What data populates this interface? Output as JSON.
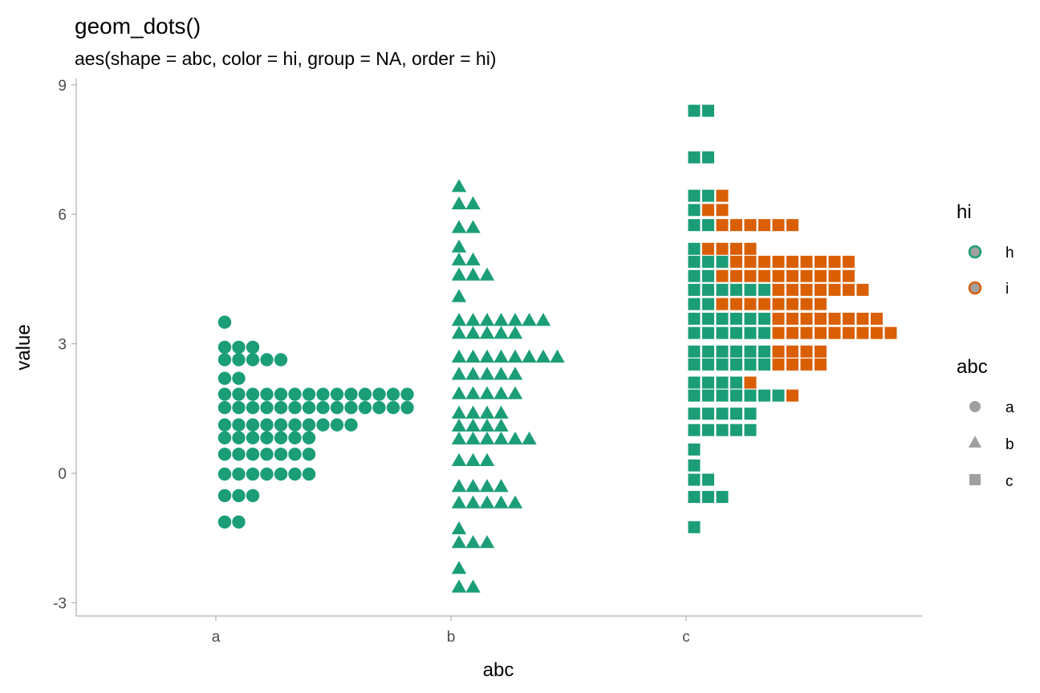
{
  "colors": {
    "h": "#1b9e77",
    "i": "#d95f02",
    "legend_fill": "#a0a0a0",
    "axis": "#b3b3b3"
  },
  "chart_data": {
    "type": "dotplot",
    "title": "geom_dots()",
    "subtitle": "aes(shape = abc, color = hi, group = NA, order = hi)",
    "xlabel": "abc",
    "ylabel": "value",
    "categories": [
      "a",
      "b",
      "c"
    ],
    "yticks": [
      -3,
      0,
      3,
      6,
      9
    ],
    "ylim": [
      -3.3,
      9.0
    ],
    "grid": false,
    "legend_position": "right",
    "legends": [
      {
        "title": "hi",
        "key": "color",
        "entries": [
          {
            "label": "h",
            "color": "#1b9e77"
          },
          {
            "label": "i",
            "color": "#d95f02"
          }
        ]
      },
      {
        "title": "abc",
        "key": "shape",
        "entries": [
          {
            "label": "a",
            "shape": "circle"
          },
          {
            "label": "b",
            "shape": "triangle"
          },
          {
            "label": "c",
            "shape": "square"
          }
        ]
      }
    ],
    "stacks": [
      {
        "category": "a",
        "shape": "circle",
        "bins": [
          {
            "y": 3.5,
            "h": 1,
            "i": 0
          },
          {
            "y": 2.92,
            "h": 3,
            "i": 0
          },
          {
            "y": 2.63,
            "h": 5,
            "i": 0
          },
          {
            "y": 2.2,
            "h": 2,
            "i": 0
          },
          {
            "y": 1.83,
            "h": 14,
            "i": 0
          },
          {
            "y": 1.52,
            "h": 14,
            "i": 0
          },
          {
            "y": 1.12,
            "h": 10,
            "i": 0
          },
          {
            "y": 0.82,
            "h": 7,
            "i": 0
          },
          {
            "y": 0.44,
            "h": 7,
            "i": 0
          },
          {
            "y": -0.02,
            "h": 7,
            "i": 0
          },
          {
            "y": -0.52,
            "h": 3,
            "i": 0
          },
          {
            "y": -1.13,
            "h": 2,
            "i": 0
          }
        ]
      },
      {
        "category": "b",
        "shape": "triangle",
        "bins": [
          {
            "y": 6.65,
            "h": 1,
            "i": 0
          },
          {
            "y": 6.25,
            "h": 2,
            "i": 0
          },
          {
            "y": 5.7,
            "h": 2,
            "i": 0
          },
          {
            "y": 5.25,
            "h": 1,
            "i": 0
          },
          {
            "y": 4.95,
            "h": 2,
            "i": 0
          },
          {
            "y": 4.6,
            "h": 3,
            "i": 0
          },
          {
            "y": 4.1,
            "h": 1,
            "i": 0
          },
          {
            "y": 3.55,
            "h": 7,
            "i": 0
          },
          {
            "y": 3.25,
            "h": 5,
            "i": 0
          },
          {
            "y": 2.7,
            "h": 8,
            "i": 0
          },
          {
            "y": 2.3,
            "h": 5,
            "i": 0
          },
          {
            "y": 1.85,
            "h": 5,
            "i": 0
          },
          {
            "y": 1.4,
            "h": 4,
            "i": 0
          },
          {
            "y": 1.1,
            "h": 4,
            "i": 0
          },
          {
            "y": 0.8,
            "h": 6,
            "i": 0
          },
          {
            "y": 0.3,
            "h": 3,
            "i": 0
          },
          {
            "y": -0.3,
            "h": 4,
            "i": 0
          },
          {
            "y": -0.68,
            "h": 5,
            "i": 0
          },
          {
            "y": -1.28,
            "h": 1,
            "i": 0
          },
          {
            "y": -1.6,
            "h": 3,
            "i": 0
          },
          {
            "y": -2.2,
            "h": 1,
            "i": 0
          },
          {
            "y": -2.63,
            "h": 2,
            "i": 0
          }
        ]
      },
      {
        "category": "c",
        "shape": "square",
        "bins": [
          {
            "y": 8.4,
            "h": 2,
            "i": 0
          },
          {
            "y": 7.32,
            "h": 2,
            "i": 0
          },
          {
            "y": 6.43,
            "h": 2,
            "i": 1
          },
          {
            "y": 6.1,
            "h": 1,
            "i": 2
          },
          {
            "y": 5.75,
            "h": 2,
            "i": 6
          },
          {
            "y": 5.2,
            "h": 1,
            "i": 4
          },
          {
            "y": 4.9,
            "h": 3,
            "i": 9
          },
          {
            "y": 4.57,
            "h": 2,
            "i": 10
          },
          {
            "y": 4.25,
            "h": 6,
            "i": 7
          },
          {
            "y": 3.92,
            "h": 2,
            "i": 8
          },
          {
            "y": 3.58,
            "h": 6,
            "i": 8
          },
          {
            "y": 3.25,
            "h": 6,
            "i": 9
          },
          {
            "y": 2.82,
            "h": 6,
            "i": 4
          },
          {
            "y": 2.52,
            "h": 6,
            "i": 4
          },
          {
            "y": 2.1,
            "h": 4,
            "i": 1
          },
          {
            "y": 1.8,
            "h": 7,
            "i": 1
          },
          {
            "y": 1.38,
            "h": 5,
            "i": 0
          },
          {
            "y": 1.0,
            "h": 5,
            "i": 0
          },
          {
            "y": 0.55,
            "h": 1,
            "i": 0
          },
          {
            "y": 0.18,
            "h": 1,
            "i": 0
          },
          {
            "y": -0.15,
            "h": 2,
            "i": 0
          },
          {
            "y": -0.55,
            "h": 3,
            "i": 0
          },
          {
            "y": -1.25,
            "h": 1,
            "i": 0
          }
        ]
      }
    ]
  }
}
